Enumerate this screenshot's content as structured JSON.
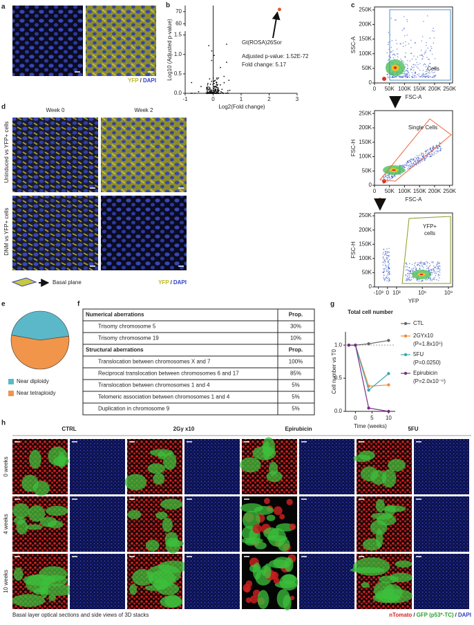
{
  "panel_labels": [
    "a",
    "b",
    "c",
    "d",
    "e",
    "f",
    "g",
    "h"
  ],
  "panel_a": {
    "legend": [
      "YFP",
      "/",
      "DAPI"
    ]
  },
  "panel_b": {
    "xlabel": "Log2(Fold change)",
    "ylabel": "Log10 (Adjusted p-value)",
    "xlim": [
      -1,
      3
    ],
    "xticks": [
      -1,
      0,
      1,
      2,
      3
    ],
    "ylim_bottom": [
      0,
      1.6
    ],
    "yticks_bottom": [
      {
        "value": 0,
        "label": "0.0"
      },
      0.5,
      {
        "value": 1,
        "label": "1.0"
      },
      1.5
    ],
    "ylim_top": [
      58,
      75
    ],
    "yticks_top": [
      60,
      70
    ],
    "highlight": {
      "x": 2.37,
      "y": 71.8,
      "color": "#e8562a"
    },
    "annotation": [
      "Gt(ROSA)26Sor",
      "Adjusted p-value: 1.52E-72",
      "Fold change: 5.17"
    ]
  },
  "panel_c": {
    "plots": [
      {
        "ylabel": "SSC-A",
        "xlabel": "FSC-A",
        "gate": [
          "Cells"
        ],
        "gate_color": "#4a90c8",
        "xlim": [
          0,
          260000
        ],
        "ylim": [
          0,
          260000
        ],
        "xticks": [
          0,
          {
            "value": 50000,
            "label": "50K"
          },
          {
            "value": 100000,
            "label": "100K"
          },
          {
            "value": 150000,
            "label": "150K"
          },
          {
            "value": 200000,
            "label": "200K"
          },
          {
            "value": 250000,
            "label": "250K"
          }
        ],
        "yticks": [
          0,
          {
            "value": 50000,
            "label": "50K"
          },
          {
            "value": 100000,
            "label": "100K"
          },
          {
            "value": 150000,
            "label": "150K"
          },
          {
            "value": 200000,
            "label": "200K"
          },
          {
            "value": 250000,
            "label": "250K"
          }
        ]
      },
      {
        "ylabel": "FSC-H",
        "xlabel": "FSC-A",
        "gate": [
          "Single Cells"
        ],
        "gate_color": "#e8663a",
        "xlim": [
          0,
          260000
        ],
        "ylim": [
          0,
          260000
        ],
        "xticks": [
          0,
          {
            "value": 50000,
            "label": "50K"
          },
          {
            "value": 100000,
            "label": "100K"
          },
          {
            "value": 150000,
            "label": "150K"
          },
          {
            "value": 200000,
            "label": "200K"
          },
          {
            "value": 250000,
            "label": "250K"
          }
        ],
        "yticks": [
          0,
          {
            "value": 50000,
            "label": "50K"
          },
          {
            "value": 100000,
            "label": "100K"
          },
          {
            "value": 150000,
            "label": "150K"
          },
          {
            "value": 200000,
            "label": "200K"
          },
          {
            "value": 250000,
            "label": "250K"
          }
        ]
      },
      {
        "ylabel": "FSC-H",
        "xlabel": "YFP",
        "gate": [
          "YFP+",
          "cells"
        ],
        "gate_color": "#8a9a20",
        "xlim": [
          -3000,
          3000000000
        ],
        "ylim": [
          0,
          260000
        ],
        "xticks": [
          {
            "value": -1000,
            "label": "-10³"
          },
          0,
          {
            "value": 1000,
            "label": "10³"
          },
          {
            "value": 1000000,
            "label": "10⁶"
          },
          {
            "value": 1000000000,
            "label": "10⁹"
          }
        ],
        "yticks": [
          0,
          {
            "value": 50000,
            "label": "50K"
          },
          {
            "value": 100000,
            "label": "100K"
          },
          {
            "value": 150000,
            "label": "150K"
          },
          {
            "value": 200000,
            "label": "200K"
          },
          {
            "value": 250000,
            "label": "250K"
          }
        ]
      }
    ]
  },
  "panel_d": {
    "columns": [
      "Week 0",
      "Week 2"
    ],
    "rows": [
      "Uninduced vs YFP+ cells",
      "DNM vs YFP+ cells"
    ],
    "plane": "Basal plane",
    "legend": [
      "YFP",
      "/",
      "DAPI"
    ]
  },
  "panel_e": {
    "chart_data": {
      "type": "pie",
      "categories": [
        "Near diploidy",
        "Near tetraploidy"
      ],
      "values": [
        45,
        55
      ],
      "colors": [
        "#5bb8c9",
        "#f0954a"
      ]
    }
  },
  "panel_f": {
    "sections": [
      {
        "header": "Numerical aberrations",
        "prop": "Prop.",
        "rows": [
          [
            "Trisomy chromosome 5",
            "30%"
          ],
          [
            "Trisomy chromosome 19",
            "10%"
          ]
        ]
      },
      {
        "header": "Structural aberrations",
        "prop": "Prop.",
        "rows": [
          [
            "Translocation between chromosomes X and 7",
            "100%"
          ],
          [
            "Reciprocal translocation between chromosomes 6 and 17",
            "85%"
          ],
          [
            "Translocation between chromosomes 1 and 4",
            "5%"
          ],
          [
            "Telomeric association between chromosomes 1 and 4",
            "5%"
          ],
          [
            "Duplication in chromosome 9",
            "5%"
          ]
        ]
      }
    ]
  },
  "panel_g": {
    "chart_data": {
      "type": "line",
      "title": "Total cell number",
      "xlabel": "Time (weeks)",
      "ylabel": "Cell number vs T0",
      "xlim": [
        -3,
        12
      ],
      "xticks": [
        0,
        5,
        10
      ],
      "ylim": [
        0,
        1.2
      ],
      "yticks": [
        {
          "value": 0,
          "label": "0.0"
        },
        0.5,
        {
          "value": 1,
          "label": "1.0"
        }
      ],
      "x": [
        -2,
        0,
        4,
        10
      ],
      "series": [
        {
          "name": "CTL",
          "note": "",
          "color": "#666666",
          "values": [
            1.0,
            1.0,
            1.02,
            1.07
          ]
        },
        {
          "name": "2GYx10",
          "note": "(P=1.8x10⁵)",
          "color": "#f08a3c",
          "values": [
            1.0,
            1.0,
            0.38,
            0.4
          ]
        },
        {
          "name": "5FU",
          "note": "(P=0.0250)",
          "color": "#3aa6b0",
          "values": [
            1.0,
            1.0,
            0.32,
            0.57
          ]
        },
        {
          "name": "Epirubicin",
          "note": "(P=2.0x10⁻⁶)",
          "color": "#7a2a8a",
          "values": [
            1.0,
            1.0,
            0.05,
            0.0
          ]
        }
      ]
    }
  },
  "panel_h": {
    "columns": [
      "CTRL",
      "2Gy x10",
      "Epirubicin",
      "5FU"
    ],
    "rows": [
      "0 weeks",
      "4 weeks",
      "10 weeks"
    ],
    "caption": "Basal layer optical sections and side views of 3D stacks",
    "legend": [
      "nTomato",
      "/",
      "GFP (p53*-TC)",
      "/",
      "DAPI"
    ]
  }
}
